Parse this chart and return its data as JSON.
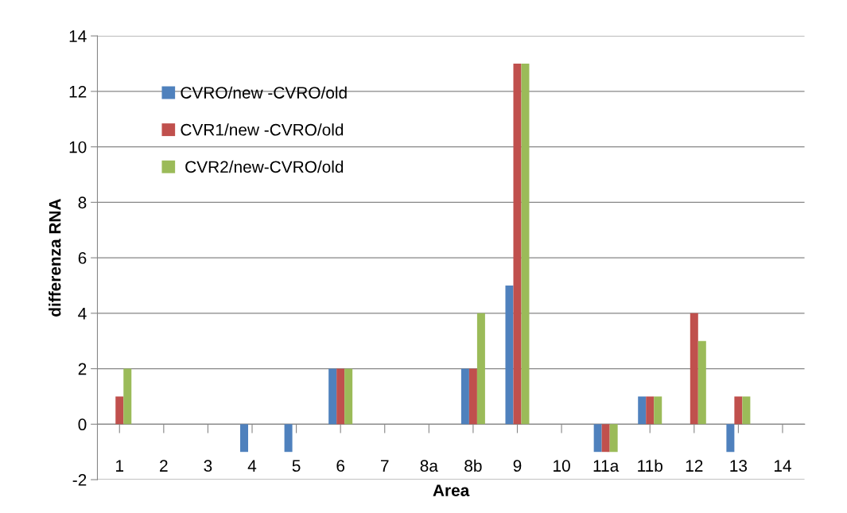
{
  "chart_data": {
    "type": "bar",
    "xlabel": "Area",
    "ylabel": "differenza RNA",
    "categories": [
      "1",
      "2",
      "3",
      "4",
      "5",
      "6",
      "7",
      "8a",
      "8b",
      "9",
      "10",
      "11a",
      "11b",
      "12",
      "13",
      "14"
    ],
    "series": [
      {
        "name": "CVRO/new -CVRO/old",
        "color": "#4f81bd",
        "values": [
          0,
          0,
          0,
          -1,
          -1,
          2,
          0,
          0,
          2,
          5,
          0,
          -1,
          1,
          0,
          -1,
          0
        ]
      },
      {
        "name": "CVR1/new -CVRO/old",
        "color": "#c0504d",
        "values": [
          1,
          0,
          0,
          0,
          0,
          2,
          0,
          0,
          2,
          13,
          0,
          -1,
          1,
          4,
          1,
          0
        ]
      },
      {
        "name": " CVR2/new-CVRO/old",
        "color": "#9bbb59",
        "values": [
          2,
          0,
          0,
          0,
          0,
          2,
          0,
          0,
          4,
          13,
          0,
          -1,
          1,
          3,
          1,
          0
        ]
      }
    ],
    "ylim": [
      -2,
      14
    ],
    "yticks": [
      -2,
      0,
      2,
      4,
      6,
      8,
      10,
      12,
      14
    ],
    "grid": "y",
    "legend": "top left"
  }
}
